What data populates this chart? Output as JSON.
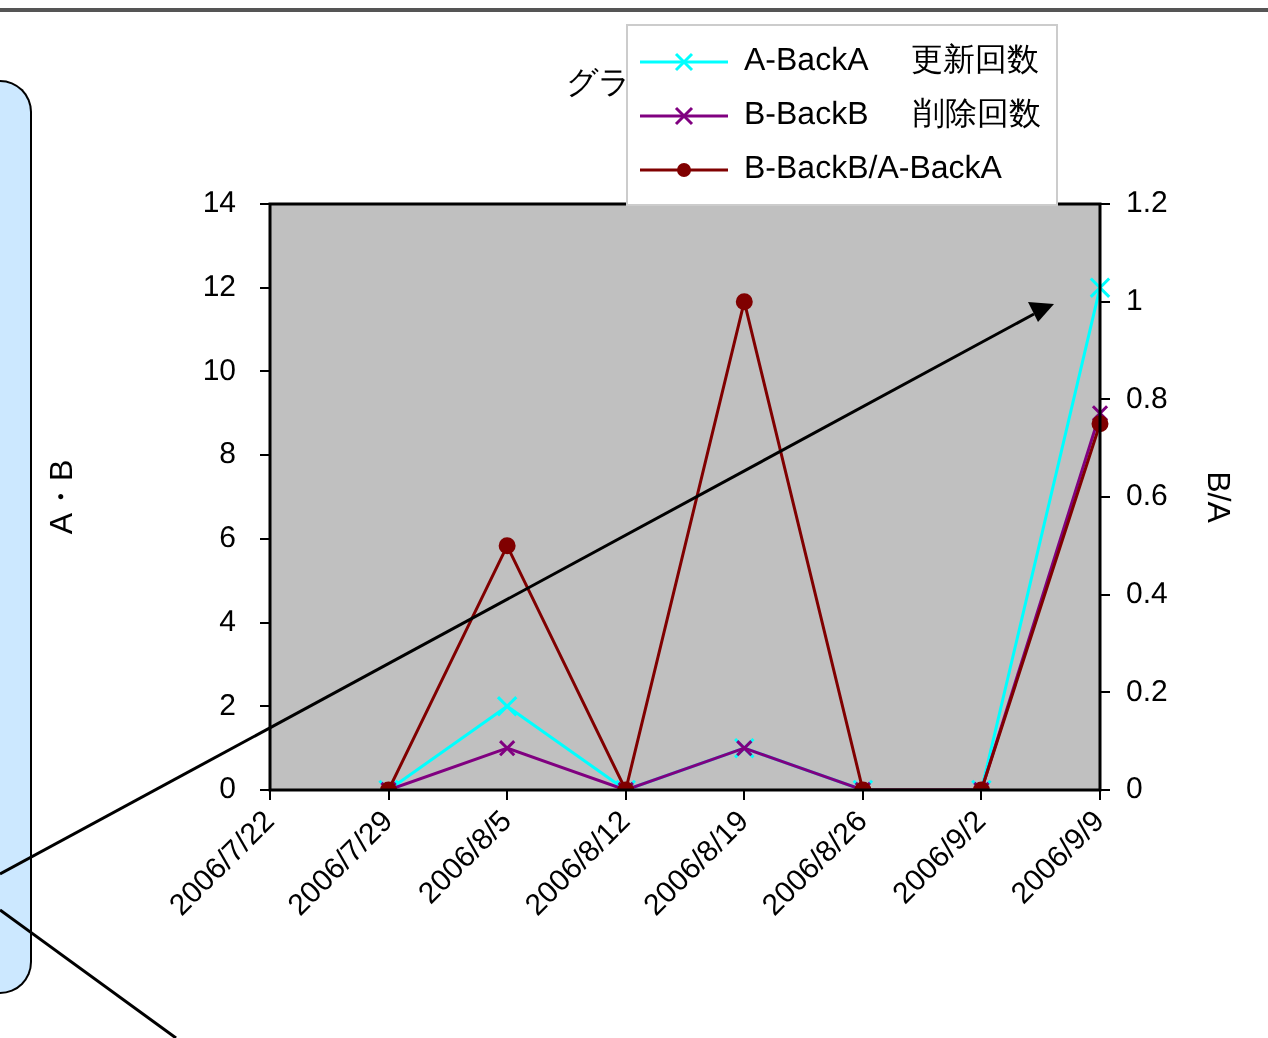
{
  "chart_data": {
    "type": "line",
    "title": "グラ",
    "ylabel": "A・B",
    "y2label": "B/A",
    "categories": [
      "2006/7/22",
      "2006/7/29",
      "2006/8/5",
      "2006/8/12",
      "2006/8/19",
      "2006/8/26",
      "2006/9/2",
      "2006/9/9"
    ],
    "series": [
      {
        "name": "A-BackA     更新回数",
        "color": "#00ffff",
        "marker": "cross",
        "values": [
          null,
          0,
          2,
          0,
          1,
          0,
          0,
          12
        ]
      },
      {
        "name": "B-BackB     削除回数",
        "color": "#800080",
        "marker": "cross",
        "values": [
          null,
          0,
          1,
          0,
          1,
          0,
          0,
          9
        ]
      },
      {
        "name": "B-BackB/A-BackA",
        "color": "#800000",
        "marker": "circle",
        "axis": "y2",
        "values": [
          null,
          0,
          0.5,
          0,
          1,
          0,
          0,
          0.75
        ]
      }
    ],
    "ylim": [
      0,
      14
    ],
    "yticks": [
      0,
      2,
      4,
      6,
      8,
      10,
      12,
      14
    ],
    "y2lim": [
      0,
      1.2
    ],
    "y2ticks": [
      0,
      0.2,
      0.4,
      0.6,
      0.8,
      1,
      1.2
    ],
    "legend": "top right",
    "line_style": "solid"
  }
}
